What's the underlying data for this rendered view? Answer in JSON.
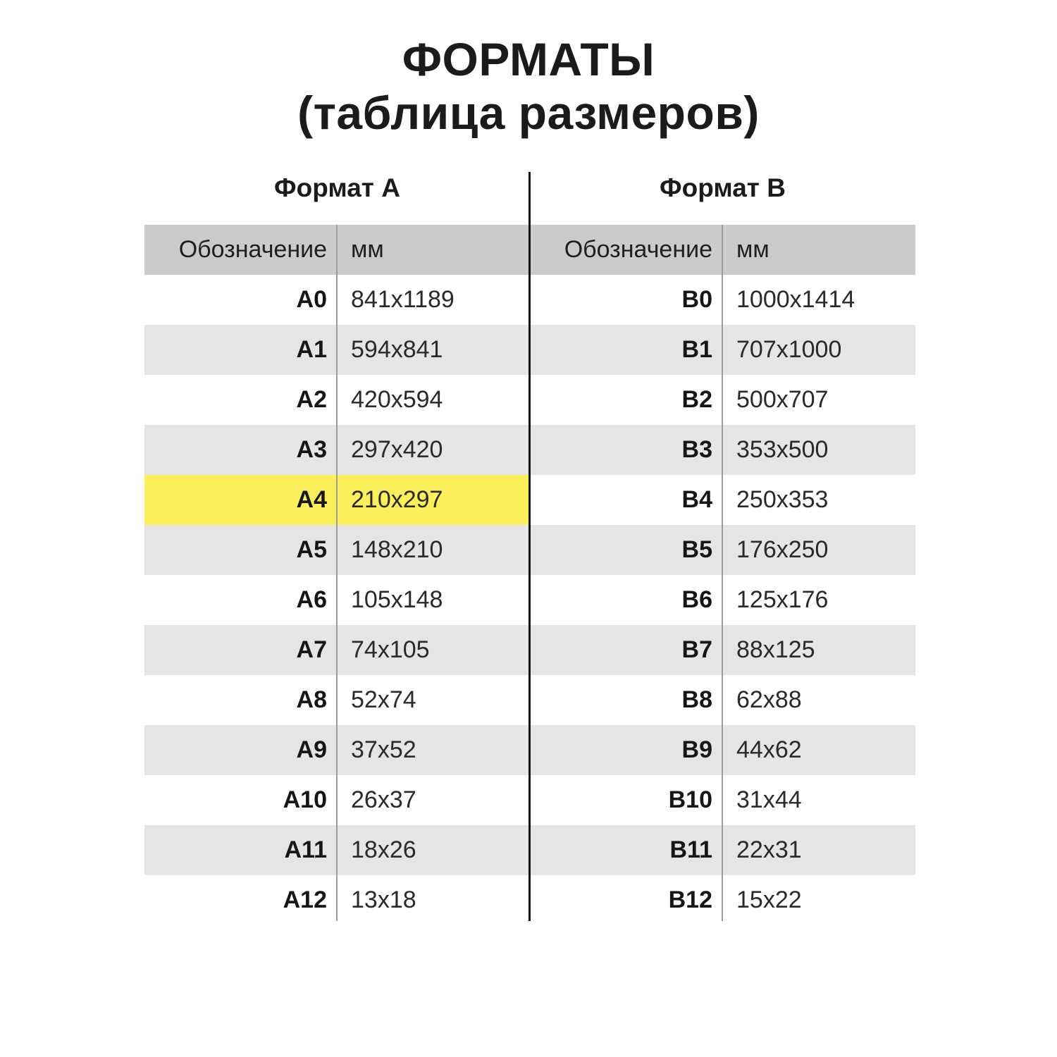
{
  "title": {
    "line1": "ФОРМАТЫ",
    "line2": "(таблица размеров)"
  },
  "tables": {
    "left": {
      "title": "Формат А",
      "headers": {
        "designation": "Обозначение",
        "mm": "мм"
      },
      "rows": [
        {
          "designation": "A0",
          "mm": "841x1189",
          "highlighted": false
        },
        {
          "designation": "A1",
          "mm": "594x841",
          "highlighted": false
        },
        {
          "designation": "A2",
          "mm": "420x594",
          "highlighted": false
        },
        {
          "designation": "A3",
          "mm": "297x420",
          "highlighted": false
        },
        {
          "designation": "A4",
          "mm": "210x297",
          "highlighted": true
        },
        {
          "designation": "A5",
          "mm": "148x210",
          "highlighted": false
        },
        {
          "designation": "A6",
          "mm": "105x148",
          "highlighted": false
        },
        {
          "designation": "A7",
          "mm": "74x105",
          "highlighted": false
        },
        {
          "designation": "A8",
          "mm": "52x74",
          "highlighted": false
        },
        {
          "designation": "A9",
          "mm": "37x52",
          "highlighted": false
        },
        {
          "designation": "A10",
          "mm": "26x37",
          "highlighted": false
        },
        {
          "designation": "A11",
          "mm": "18x26",
          "highlighted": false
        },
        {
          "designation": "A12",
          "mm": "13x18",
          "highlighted": false
        }
      ]
    },
    "right": {
      "title": "Формат В",
      "headers": {
        "designation": "Обозначение",
        "mm": "мм"
      },
      "rows": [
        {
          "designation": "B0",
          "mm": "1000x1414",
          "highlighted": false
        },
        {
          "designation": "B1",
          "mm": "707x1000",
          "highlighted": false
        },
        {
          "designation": "B2",
          "mm": "500x707",
          "highlighted": false
        },
        {
          "designation": "B3",
          "mm": "353x500",
          "highlighted": false
        },
        {
          "designation": "B4",
          "mm": "250x353",
          "highlighted": false
        },
        {
          "designation": "B5",
          "mm": "176x250",
          "highlighted": false
        },
        {
          "designation": "B6",
          "mm": "125x176",
          "highlighted": false
        },
        {
          "designation": "B7",
          "mm": "88x125",
          "highlighted": false
        },
        {
          "designation": "B8",
          "mm": "62x88",
          "highlighted": false
        },
        {
          "designation": "B9",
          "mm": "44x62",
          "highlighted": false
        },
        {
          "designation": "B10",
          "mm": "31x44",
          "highlighted": false
        },
        {
          "designation": "B11",
          "mm": "22x31",
          "highlighted": false
        },
        {
          "designation": "B12",
          "mm": "15x22",
          "highlighted": false
        }
      ]
    }
  },
  "colors": {
    "header_row_bg": "#cbcbcb",
    "alt_row_bg": "#e5e5e7",
    "highlight_row_bg": "#fbf05c",
    "center_divider": "#141414",
    "column_divider": "#9c9c9c",
    "text": "#1b1b1b",
    "page_bg": "#ffffff"
  }
}
